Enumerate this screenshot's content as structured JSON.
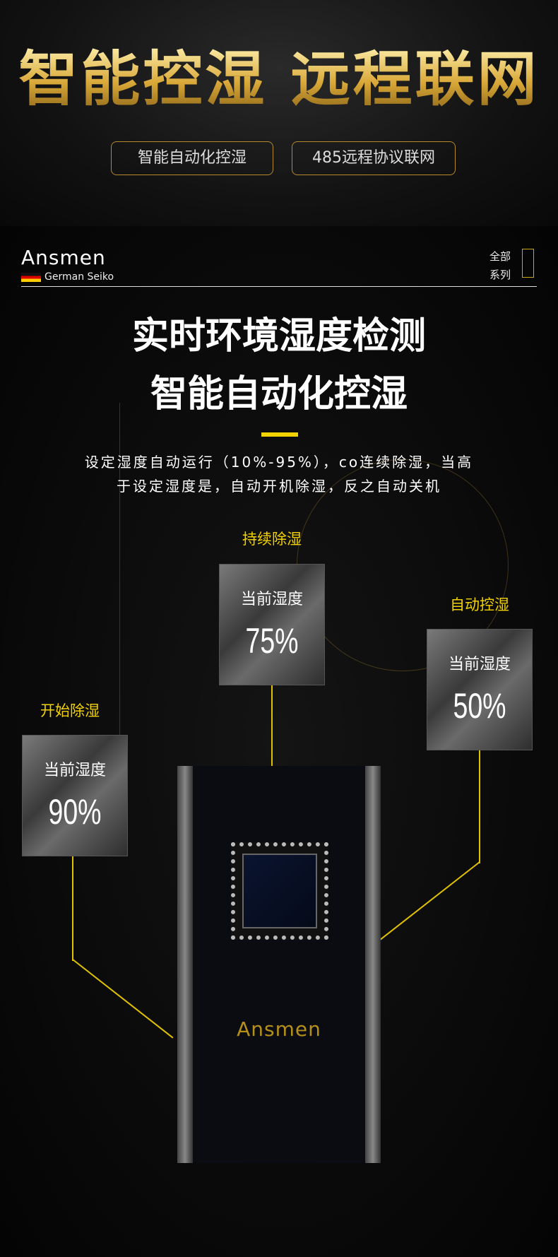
{
  "banner": {
    "title": "智能控湿 远程联网",
    "pills": [
      "智能自动化控湿",
      "485远程协议联网"
    ]
  },
  "header": {
    "logo": "Ansmen",
    "tagline": "German Seiko",
    "menu": [
      "全部",
      "系列"
    ]
  },
  "headline": [
    "实时环境湿度检测",
    "智能自动化控湿"
  ],
  "description": [
    "设定湿度自动运行（10%-95%），co连续除湿，当高",
    "于设定湿度是，自动开机除湿，反之自动关机"
  ],
  "cards": [
    {
      "label": "持续除湿",
      "title": "当前湿度",
      "value": "75%"
    },
    {
      "label": "自动控湿",
      "title": "当前湿度",
      "value": "50%"
    },
    {
      "label": "开始除湿",
      "title": "当前湿度",
      "value": "90%"
    }
  ],
  "device": {
    "logo": "Ansmen"
  },
  "colors": {
    "accent": "#f2d200",
    "gold": "#d9a838"
  }
}
